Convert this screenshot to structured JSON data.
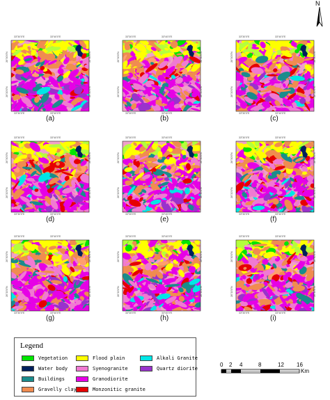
{
  "north_arrow": {
    "label": "N"
  },
  "panels": [
    {
      "label": "(a)"
    },
    {
      "label": "(b)"
    },
    {
      "label": "(c)"
    },
    {
      "label": "(d)"
    },
    {
      "label": "(e)"
    },
    {
      "label": "(f)"
    },
    {
      "label": "(g)"
    },
    {
      "label": "(h)"
    },
    {
      "label": "(i)"
    }
  ],
  "legend": {
    "title": "Legend",
    "items": [
      {
        "label": "Vegetation",
        "color": "#00e600"
      },
      {
        "label": "Water body",
        "color": "#001f5c"
      },
      {
        "label": "Buildings",
        "color": "#1a8c8c"
      },
      {
        "label": "Gravelly clay",
        "color": "#f08c50"
      },
      {
        "label": "Flood plain",
        "color": "#ffff00"
      },
      {
        "label": "Syenogranite",
        "color": "#f07ad2"
      },
      {
        "label": "Granodiorite",
        "color": "#e600e6"
      },
      {
        "label": "Monzonitic granite",
        "color": "#e60000"
      },
      {
        "label": "Alkali Granite",
        "color": "#00e6e6"
      },
      {
        "label": "Quartz diorite",
        "color": "#9932cc"
      }
    ]
  },
  "scale_bar": {
    "ticks": [
      "0",
      "2",
      "4",
      "8",
      "12",
      "16"
    ],
    "unit": "Km"
  }
}
